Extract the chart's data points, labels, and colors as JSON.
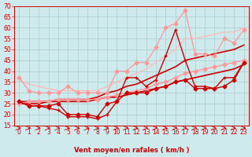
{
  "xlabel": "Vent moyen/en rafales ( km/h )",
  "background_color": "#ceeaed",
  "grid_color": "#aacccc",
  "xlim": [
    -0.5,
    23.5
  ],
  "ylim": [
    15,
    70
  ],
  "yticks": [
    15,
    20,
    25,
    30,
    35,
    40,
    45,
    50,
    55,
    60,
    65,
    70
  ],
  "xticks": [
    0,
    1,
    2,
    3,
    4,
    5,
    6,
    7,
    8,
    9,
    10,
    11,
    12,
    13,
    14,
    15,
    16,
    17,
    18,
    19,
    20,
    21,
    22,
    23
  ],
  "series": [
    {
      "x": [
        0,
        1,
        2,
        3,
        4,
        5,
        6,
        7,
        8,
        9,
        10,
        11,
        12,
        13,
        14,
        15,
        16,
        17,
        18,
        19,
        20,
        21,
        22,
        23
      ],
      "y": [
        26,
        24,
        24,
        24,
        25,
        20,
        20,
        20,
        19,
        25,
        26,
        30,
        30,
        30,
        32,
        33,
        35,
        36,
        32,
        32,
        32,
        33,
        36,
        44
      ],
      "color": "#cc0000",
      "linewidth": 1.0,
      "markersize": 2.5,
      "marker": "D",
      "linestyle": "-",
      "zorder": 5
    },
    {
      "x": [
        0,
        1,
        2,
        3,
        4,
        5,
        6,
        7,
        8,
        9,
        10,
        11,
        12,
        13,
        14,
        15,
        16,
        17,
        18,
        19,
        20,
        21,
        22,
        23
      ],
      "y": [
        26,
        24,
        24,
        23,
        22,
        19,
        19,
        19,
        18,
        20,
        26,
        37,
        37,
        33,
        36,
        47,
        59,
        45,
        33,
        33,
        32,
        37,
        37,
        44
      ],
      "color": "#cc0000",
      "linewidth": 1.0,
      "markersize": 2.5,
      "marker": "+",
      "linestyle": "-",
      "zorder": 5
    },
    {
      "x": [
        0,
        1,
        2,
        3,
        4,
        5,
        6,
        7,
        8,
        9,
        10,
        11,
        12,
        13,
        14,
        15,
        16,
        17,
        18,
        19,
        20,
        21,
        22,
        23
      ],
      "y": [
        37,
        31,
        30,
        30,
        30,
        33,
        30,
        30,
        30,
        30,
        40,
        40,
        44,
        44,
        51,
        60,
        62,
        68,
        48,
        48,
        47,
        55,
        53,
        59
      ],
      "color": "#ff9999",
      "linewidth": 0.9,
      "markersize": 2.5,
      "marker": "D",
      "linestyle": "-",
      "zorder": 4
    },
    {
      "x": [
        0,
        1,
        2,
        3,
        4,
        5,
        6,
        7,
        8,
        9,
        10,
        11,
        12,
        13,
        14,
        15,
        16,
        17,
        18,
        19,
        20,
        21,
        22,
        23
      ],
      "y": [
        36,
        34,
        33,
        32,
        31,
        31,
        31,
        31,
        31,
        33,
        35,
        37,
        39,
        41,
        44,
        47,
        50,
        55,
        55,
        56,
        57,
        58,
        58,
        60
      ],
      "color": "#ffbbbb",
      "linewidth": 1.0,
      "markersize": 0,
      "marker": null,
      "linestyle": "-",
      "zorder": 3
    },
    {
      "x": [
        0,
        1,
        2,
        3,
        4,
        5,
        6,
        7,
        8,
        9,
        10,
        11,
        12,
        13,
        14,
        15,
        16,
        17,
        18,
        19,
        20,
        21,
        22,
        23
      ],
      "y": [
        25,
        26,
        26,
        26,
        27,
        27,
        27,
        27,
        27,
        28,
        29,
        30,
        31,
        32,
        34,
        35,
        37,
        39,
        40,
        41,
        42,
        43,
        44,
        45
      ],
      "color": "#ff9999",
      "linewidth": 1.0,
      "markersize": 2.5,
      "marker": "D",
      "linestyle": "-",
      "zorder": 4
    },
    {
      "x": [
        0,
        1,
        2,
        3,
        4,
        5,
        6,
        7,
        8,
        9,
        10,
        11,
        12,
        13,
        14,
        15,
        16,
        17,
        18,
        19,
        20,
        21,
        22,
        23
      ],
      "y": [
        25,
        25,
        25,
        26,
        26,
        26,
        26,
        26,
        27,
        28,
        28,
        29,
        30,
        31,
        32,
        33,
        35,
        36,
        37,
        38,
        39,
        40,
        41,
        43
      ],
      "color": "#cc0000",
      "linewidth": 1.2,
      "markersize": 0,
      "marker": null,
      "linestyle": "-",
      "zorder": 3
    },
    {
      "x": [
        0,
        1,
        2,
        3,
        4,
        5,
        6,
        7,
        8,
        9,
        10,
        11,
        12,
        13,
        14,
        15,
        16,
        17,
        18,
        19,
        20,
        21,
        22,
        23
      ],
      "y": [
        26,
        26,
        26,
        26,
        27,
        27,
        27,
        27,
        28,
        30,
        31,
        33,
        34,
        36,
        38,
        40,
        42,
        45,
        46,
        47,
        48,
        49,
        50,
        52
      ],
      "color": "#cc0000",
      "linewidth": 1.2,
      "markersize": 0,
      "marker": null,
      "linestyle": "-",
      "zorder": 3
    }
  ],
  "arrow_color": "#cc0000",
  "axis_fontsize": 6,
  "tick_fontsize": 5.5
}
